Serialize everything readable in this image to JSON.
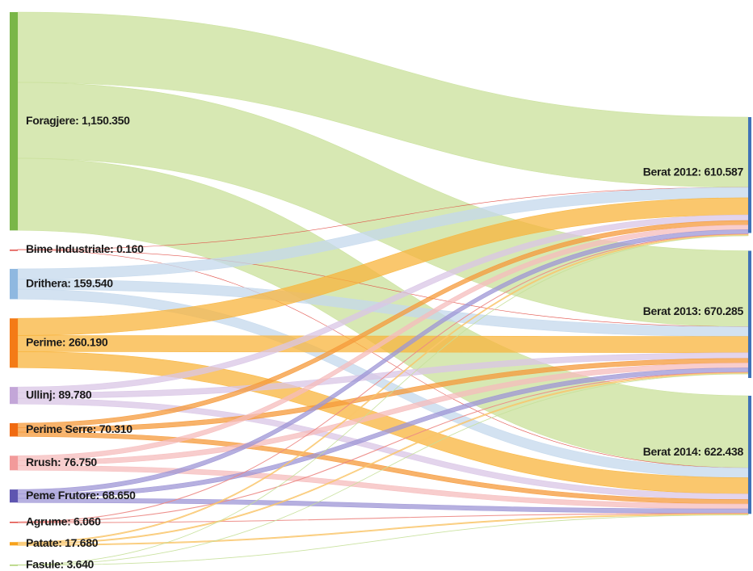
{
  "chart_data": {
    "type": "sankey",
    "nodes": [
      {
        "label": "Foragjere: 1,150.350",
        "value": 1150.35,
        "color": "#7ab648",
        "flow_color": "#c9e09a"
      },
      {
        "label": "Bime Industriale: 0.160",
        "value": 0.16,
        "color": "#e0473f",
        "flow_color": "#e0473f"
      },
      {
        "label": "Drithera: 159.540",
        "value": 159.54,
        "color": "#8fb8e0",
        "flow_color": "#c4d8ec"
      },
      {
        "label": "Perime: 260.190",
        "value": 260.19,
        "color": "#f47b16",
        "flow_color": "#f8b43c"
      },
      {
        "label": "Ullinj: 89.780",
        "value": 89.78,
        "color": "#c3a6d8",
        "flow_color": "#d9c6e6"
      },
      {
        "label": "Perime Serre: 70.310",
        "value": 70.31,
        "color": "#f06a10",
        "flow_color": "#f59a3a"
      },
      {
        "label": "Rrush: 76.750",
        "value": 76.75,
        "color": "#f29a9a",
        "flow_color": "#f5bcbc"
      },
      {
        "label": "Peme Frutore: 68.650",
        "value": 68.65,
        "color": "#5e55b0",
        "flow_color": "#9e96d6"
      },
      {
        "label": "Agrume: 6.060",
        "value": 6.06,
        "color": "#e0473f",
        "flow_color": "#ec8a85"
      },
      {
        "label": "Patate: 17.680",
        "value": 17.68,
        "color": "#f7a21b",
        "flow_color": "#f9c56a"
      },
      {
        "label": "Fasule: 3.640",
        "value": 3.64,
        "color": "#a9cf6a",
        "flow_color": "#c7e09a"
      }
    ],
    "targets": [
      {
        "label": "Berat 2012: 610.587",
        "value": 610.587,
        "color": "#3f72b8"
      },
      {
        "label": "Berat 2013: 670.285",
        "value": 670.285,
        "color": "#3f72b8"
      },
      {
        "label": "Berat 2014: 622.438",
        "value": 622.438,
        "color": "#3f72b8"
      }
    ],
    "links": [
      [
        370,
        400,
        380
      ],
      [
        0.05,
        0.06,
        0.05
      ],
      [
        55,
        52,
        52
      ],
      [
        90,
        85,
        85
      ],
      [
        30,
        30,
        30
      ],
      [
        23,
        24,
        23
      ],
      [
        25,
        26,
        26
      ],
      [
        23,
        23,
        23
      ],
      [
        2,
        2,
        2
      ],
      [
        6,
        6,
        6
      ],
      [
        1.2,
        1.2,
        1.2
      ]
    ]
  }
}
